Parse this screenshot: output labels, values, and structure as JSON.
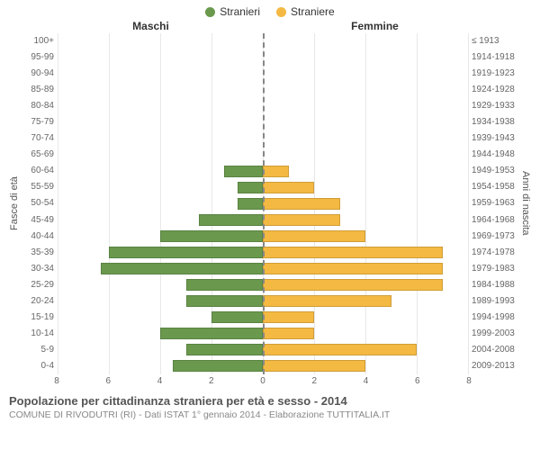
{
  "legend": {
    "male": {
      "label": "Stranieri",
      "color": "#6a994e"
    },
    "female": {
      "label": "Straniere",
      "color": "#f4b942"
    }
  },
  "headers": {
    "male": "Maschi",
    "female": "Femmine"
  },
  "axis_labels": {
    "left": "Fasce di età",
    "right": "Anni di nascita"
  },
  "xlim": 8,
  "xticks": [
    8,
    6,
    4,
    2,
    0,
    2,
    4,
    6,
    8
  ],
  "grid_color": "#e8e8e8",
  "center_color": "#888888",
  "background": "#ffffff",
  "title": "Popolazione per cittadinanza straniera per età e sesso - 2014",
  "subtitle": "COMUNE DI RIVODUTRI (RI) - Dati ISTAT 1° gennaio 2014 - Elaborazione TUTTITALIA.IT",
  "rows": [
    {
      "age": "100+",
      "birth": "≤ 1913",
      "m": 0,
      "f": 0
    },
    {
      "age": "95-99",
      "birth": "1914-1918",
      "m": 0,
      "f": 0
    },
    {
      "age": "90-94",
      "birth": "1919-1923",
      "m": 0,
      "f": 0
    },
    {
      "age": "85-89",
      "birth": "1924-1928",
      "m": 0,
      "f": 0
    },
    {
      "age": "80-84",
      "birth": "1929-1933",
      "m": 0,
      "f": 0
    },
    {
      "age": "75-79",
      "birth": "1934-1938",
      "m": 0,
      "f": 0
    },
    {
      "age": "70-74",
      "birth": "1939-1943",
      "m": 0,
      "f": 0
    },
    {
      "age": "65-69",
      "birth": "1944-1948",
      "m": 0,
      "f": 0
    },
    {
      "age": "60-64",
      "birth": "1949-1953",
      "m": 1.5,
      "f": 1
    },
    {
      "age": "55-59",
      "birth": "1954-1958",
      "m": 1,
      "f": 2
    },
    {
      "age": "50-54",
      "birth": "1959-1963",
      "m": 1,
      "f": 3
    },
    {
      "age": "45-49",
      "birth": "1964-1968",
      "m": 2.5,
      "f": 3
    },
    {
      "age": "40-44",
      "birth": "1969-1973",
      "m": 4,
      "f": 4
    },
    {
      "age": "35-39",
      "birth": "1974-1978",
      "m": 6,
      "f": 7
    },
    {
      "age": "30-34",
      "birth": "1979-1983",
      "m": 6.3,
      "f": 7
    },
    {
      "age": "25-29",
      "birth": "1984-1988",
      "m": 3,
      "f": 7
    },
    {
      "age": "20-24",
      "birth": "1989-1993",
      "m": 3,
      "f": 5
    },
    {
      "age": "15-19",
      "birth": "1994-1998",
      "m": 2,
      "f": 2
    },
    {
      "age": "10-14",
      "birth": "1999-2003",
      "m": 4,
      "f": 2
    },
    {
      "age": "5-9",
      "birth": "2004-2008",
      "m": 3,
      "f": 6
    },
    {
      "age": "0-4",
      "birth": "2009-2013",
      "m": 3.5,
      "f": 4
    }
  ]
}
